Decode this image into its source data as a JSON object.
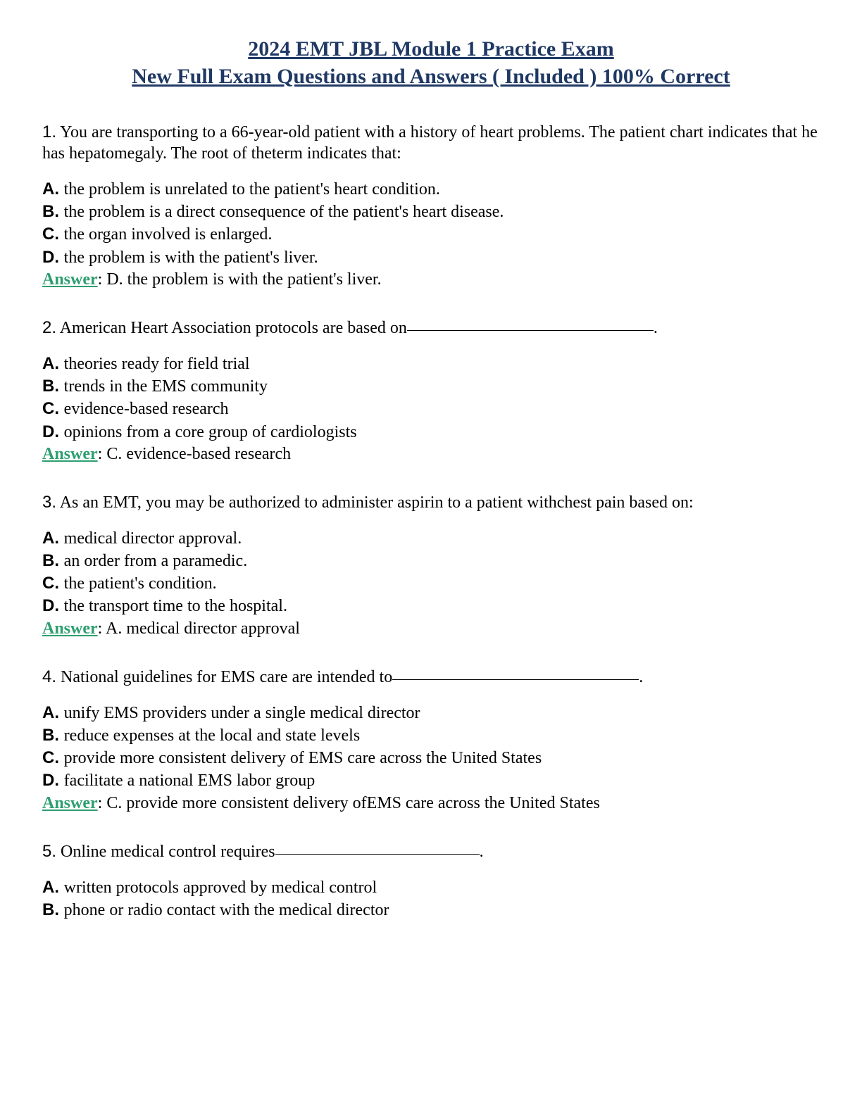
{
  "title_line1": "2024 EMT JBL Module 1 Practice Exam",
  "title_line2": "New Full Exam Questions and Answers ( Included ) 100% Correct",
  "colors": {
    "title": "#1f3864",
    "answer_label": "#2e9e6f",
    "text": "#000000",
    "background": "#ffffff"
  },
  "answer_label": "Answer",
  "questions": [
    {
      "num": "1.",
      "text": "You are transporting to a 66-year-old patient with a history of heart problems. The patient chart indicates that he has hepatomegaly. The root of theterm indicates that:",
      "has_blank": false,
      "options": {
        "A": "the problem is unrelated to the patient's heart condition.",
        "B": "the problem is a direct consequence of the patient's heart disease.",
        "C": "the organ involved is enlarged.",
        "D": "the problem is with the patient's liver."
      },
      "answer": ": D. the problem is with the patient's liver."
    },
    {
      "num": "2.",
      "text": "American Heart Association protocols are based on",
      "has_blank": true,
      "blank_class": "blank",
      "options": {
        "A": "theories ready for field trial",
        "B": "trends in the EMS community",
        "C": "evidence-based research",
        "D": "opinions from a core group of cardiologists"
      },
      "answer": ": C. evidence-based research"
    },
    {
      "num": "3.",
      "text": "As an EMT, you may be authorized to administer aspirin to a patient withchest pain based on:",
      "has_blank": false,
      "options": {
        "A": "medical director approval.",
        "B": "an order from a paramedic.",
        "C": "the patient's condition.",
        "D": "the transport time to the hospital."
      },
      "answer": ": A. medical director approval"
    },
    {
      "num": "4.",
      "text": "National guidelines for EMS care are intended to",
      "has_blank": true,
      "blank_class": "blank",
      "options": {
        "A": "unify EMS providers under a single medical director",
        "B": "reduce expenses at the local and state levels",
        "C": "provide more consistent delivery of EMS care across the United States",
        "D": "facilitate a national EMS labor group"
      },
      "answer": ": C. provide more consistent delivery ofEMS care across the United States"
    },
    {
      "num": "5.",
      "text": "Online medical control requires",
      "has_blank": true,
      "blank_class": "blank-short",
      "options": {
        "A": "written protocols approved by medical control",
        "B": "phone or radio contact with the medical director"
      },
      "answer": null
    }
  ]
}
